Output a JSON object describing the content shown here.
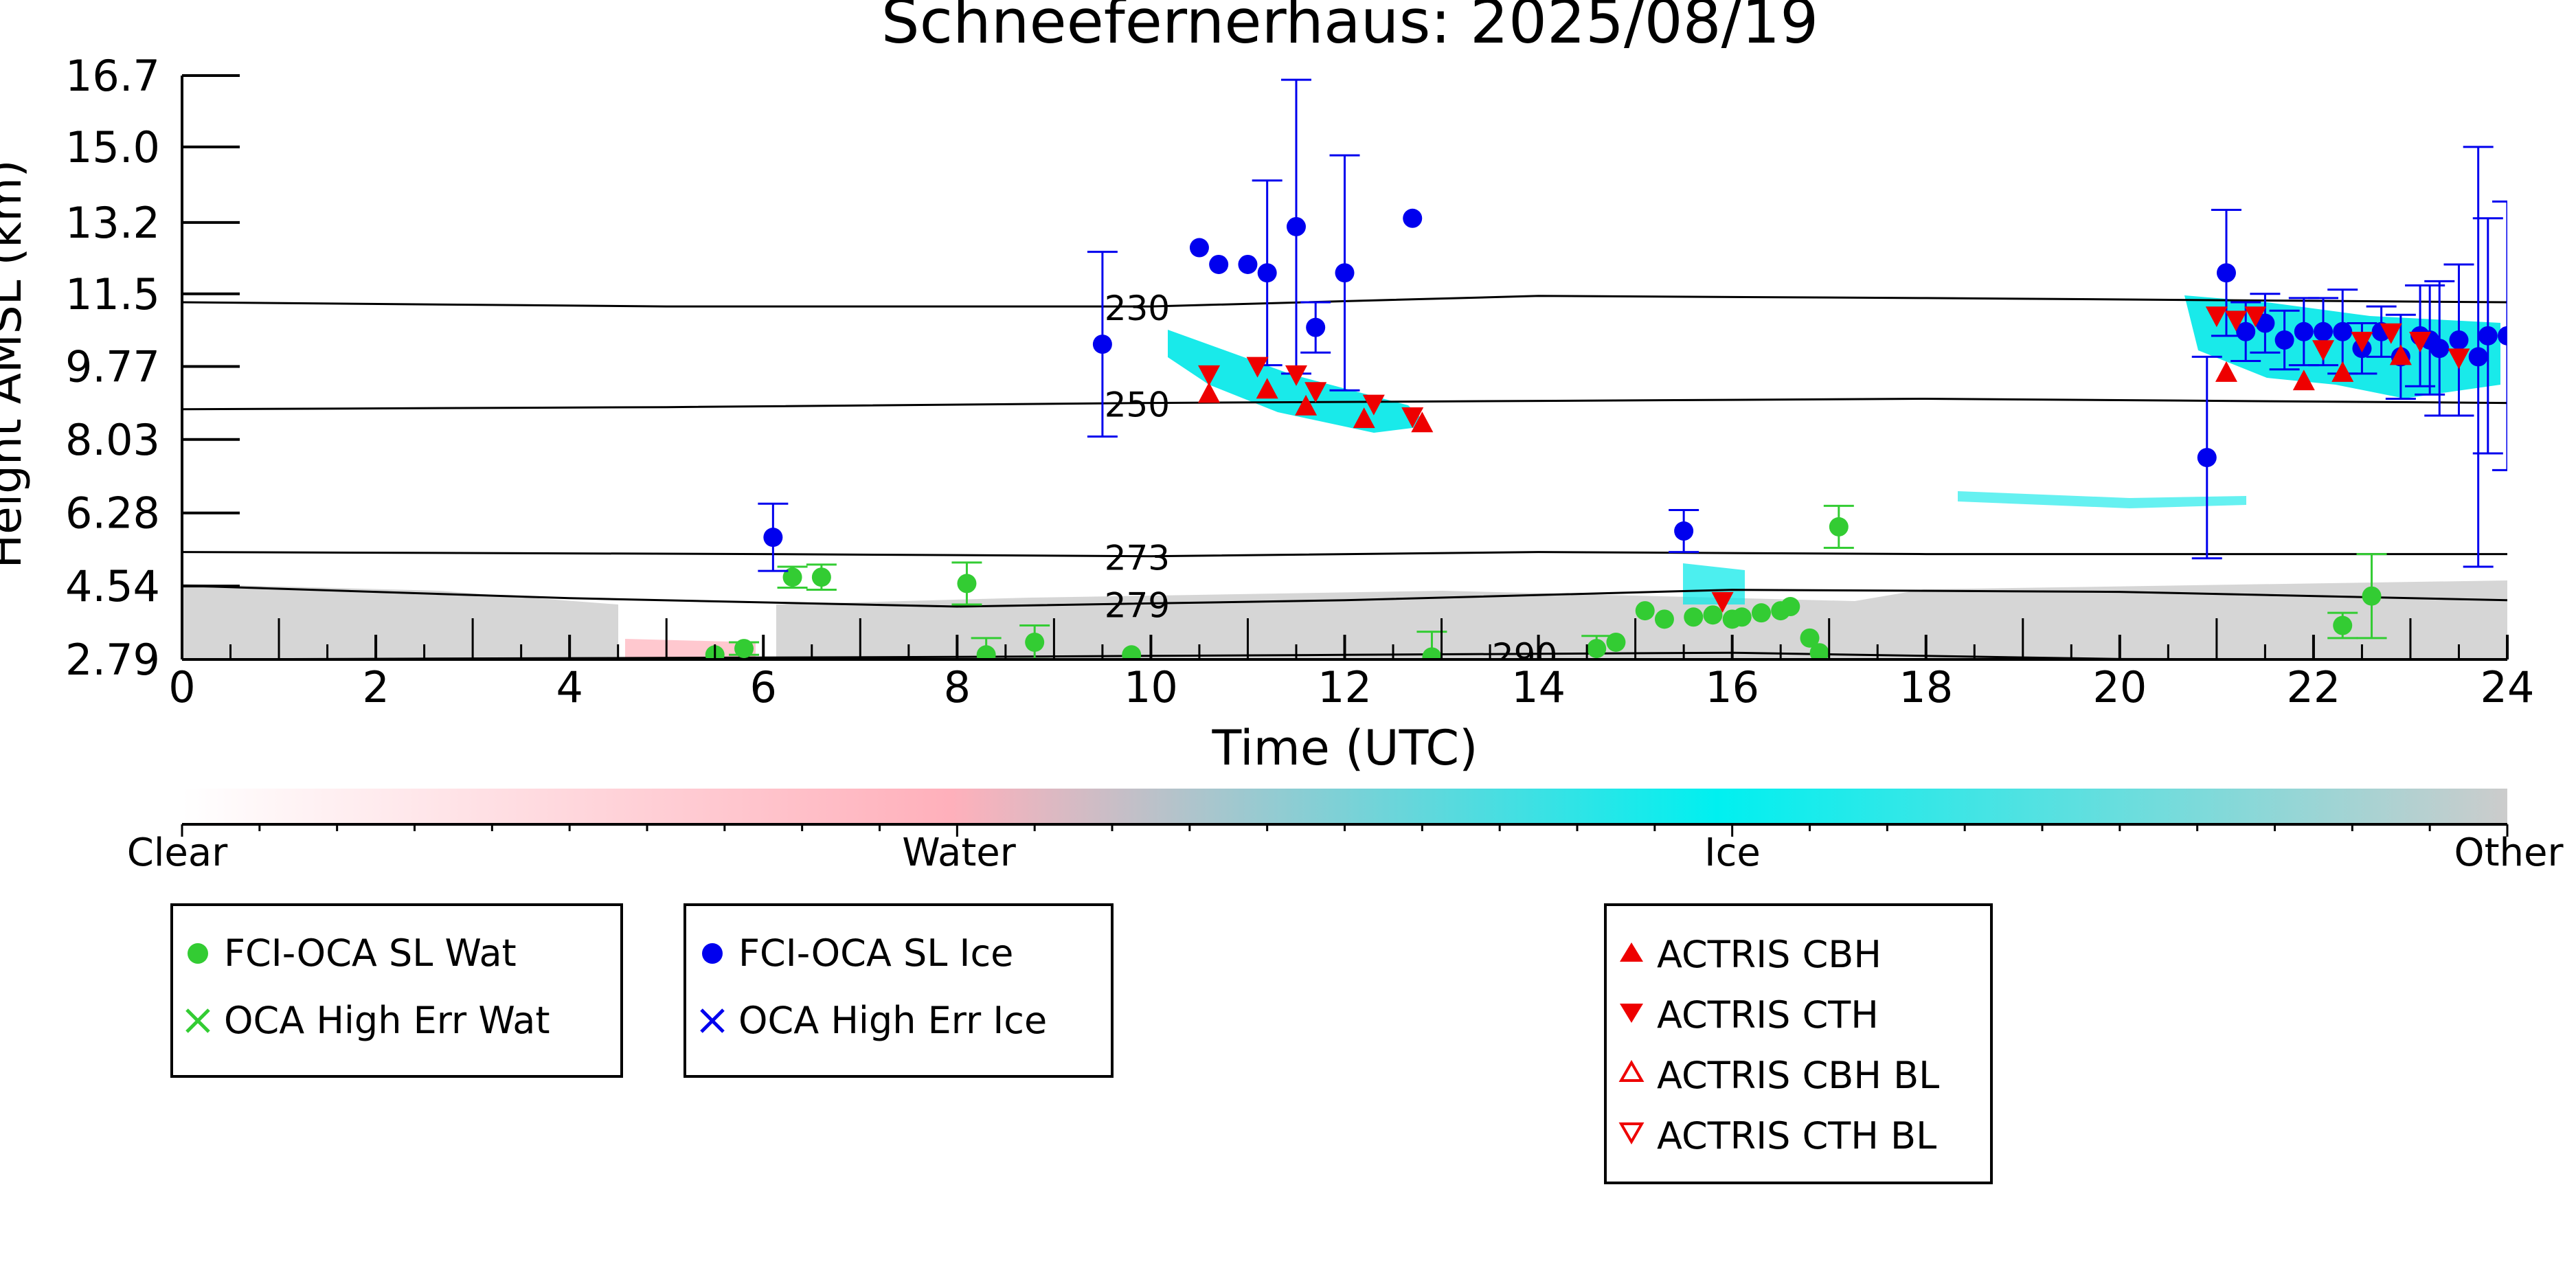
{
  "chart_data": {
    "type": "scatter",
    "title": "Schneefernerhaus: 2025/08/19",
    "xlabel": "Time (UTC)",
    "ylabel": "Height AMSL (km)",
    "xlim": [
      0,
      24
    ],
    "ylim": [
      2.79,
      16.7
    ],
    "xticks": [
      "0",
      "2",
      "4",
      "6",
      "8",
      "10",
      "12",
      "14",
      "16",
      "18",
      "20",
      "22",
      "24"
    ],
    "yticks": [
      "2.79",
      "4.54",
      "6.28",
      "8.03",
      "9.77",
      "11.5",
      "13.2",
      "15.0",
      "16.7"
    ],
    "colors": {
      "water": "#33cc33",
      "ice": "#0000ee",
      "actris": "#ee0000",
      "ice_mask": "#00eeee",
      "other_mask": "#cccccc",
      "clear": "#ffffff",
      "water_mask": "#ffb0bb"
    },
    "isotherms": [
      {
        "label": "230",
        "points": [
          [
            0,
            11.3
          ],
          [
            5,
            11.2
          ],
          [
            10,
            11.2
          ],
          [
            14,
            11.45
          ],
          [
            18,
            11.4
          ],
          [
            24,
            11.3
          ]
        ]
      },
      {
        "label": "250",
        "points": [
          [
            0,
            8.75
          ],
          [
            5,
            8.8
          ],
          [
            10,
            8.9
          ],
          [
            14,
            8.95
          ],
          [
            18,
            9.0
          ],
          [
            24,
            8.9
          ]
        ]
      },
      {
        "label": "273",
        "points": [
          [
            0,
            5.35
          ],
          [
            6,
            5.3
          ],
          [
            10,
            5.25
          ],
          [
            14,
            5.35
          ],
          [
            18,
            5.3
          ],
          [
            24,
            5.3
          ]
        ]
      },
      {
        "label": "279",
        "points": [
          [
            0,
            4.55
          ],
          [
            4,
            4.25
          ],
          [
            8,
            4.05
          ],
          [
            12,
            4.2
          ],
          [
            16,
            4.45
          ],
          [
            20,
            4.4
          ],
          [
            24,
            4.2
          ]
        ]
      },
      {
        "label": "290",
        "points": [
          [
            0,
            2.79
          ],
          [
            8,
            2.85
          ],
          [
            12,
            2.9
          ],
          [
            16,
            2.95
          ],
          [
            20,
            2.8
          ],
          [
            24,
            2.79
          ]
        ]
      }
    ],
    "series": [
      {
        "name": "FCI-OCA SL Wat",
        "marker": "circle",
        "color": "#33cc33",
        "points": [
          [
            5.5,
            2.9,
            0
          ],
          [
            5.8,
            3.05,
            0.15
          ],
          [
            6.3,
            4.75,
            0.25
          ],
          [
            6.6,
            4.75,
            0.3
          ],
          [
            8.1,
            4.6,
            0.5
          ],
          [
            8.3,
            2.9,
            0.4
          ],
          [
            8.8,
            3.2,
            0.4
          ],
          [
            9.8,
            2.9,
            0
          ],
          [
            12.9,
            2.85,
            0.6
          ],
          [
            14.6,
            3.05,
            0.3
          ],
          [
            14.8,
            3.2,
            0
          ],
          [
            15.1,
            3.95,
            0
          ],
          [
            15.3,
            3.75,
            0
          ],
          [
            15.6,
            3.8,
            0
          ],
          [
            15.8,
            3.85,
            0
          ],
          [
            16.0,
            3.75,
            0
          ],
          [
            16.1,
            3.8,
            0
          ],
          [
            16.3,
            3.9,
            0
          ],
          [
            16.5,
            3.95,
            0
          ],
          [
            16.6,
            4.05,
            0
          ],
          [
            16.8,
            3.3,
            0
          ],
          [
            16.9,
            2.95,
            0
          ],
          [
            17.1,
            5.95,
            0.5
          ],
          [
            22.3,
            3.6,
            0.3
          ],
          [
            22.6,
            4.3,
            1.0
          ]
        ]
      },
      {
        "name": "OCA High Err Wat",
        "marker": "x",
        "color": "#33cc33",
        "points": []
      },
      {
        "name": "FCI-OCA SL Ice",
        "marker": "circle",
        "color": "#0000ee",
        "points": [
          [
            6.1,
            5.7,
            0.8
          ],
          [
            9.5,
            10.3,
            2.2
          ],
          [
            10.5,
            12.6,
            0
          ],
          [
            10.7,
            12.2,
            0
          ],
          [
            11.0,
            12.2,
            0
          ],
          [
            11.2,
            12.0,
            2.2
          ],
          [
            11.5,
            13.1,
            3.5
          ],
          [
            11.7,
            10.7,
            0.6
          ],
          [
            12.0,
            12.0,
            2.8
          ],
          [
            12.7,
            13.3,
            0
          ],
          [
            15.5,
            5.85,
            0.5
          ],
          [
            20.9,
            7.6,
            2.4
          ],
          [
            21.1,
            12.0,
            1.5
          ],
          [
            21.3,
            10.6,
            0.7
          ],
          [
            21.5,
            10.8,
            0.7
          ],
          [
            21.7,
            10.4,
            0.7
          ],
          [
            21.9,
            10.6,
            0.8
          ],
          [
            22.1,
            10.6,
            0.8
          ],
          [
            22.3,
            10.6,
            1.0
          ],
          [
            22.5,
            10.2,
            0.6
          ],
          [
            22.7,
            10.6,
            0.6
          ],
          [
            22.9,
            10.0,
            1.0
          ],
          [
            23.1,
            10.5,
            1.2
          ],
          [
            23.2,
            10.4,
            1.3
          ],
          [
            23.3,
            10.2,
            1.6
          ],
          [
            23.5,
            10.4,
            1.8
          ],
          [
            23.7,
            10.0,
            5.0
          ],
          [
            23.8,
            10.5,
            2.8
          ],
          [
            24.0,
            10.5,
            3.2
          ]
        ]
      },
      {
        "name": "OCA High Err Ice",
        "marker": "x",
        "color": "#0000ee",
        "points": []
      },
      {
        "name": "ACTRIS CBH",
        "marker": "triangle-up",
        "color": "#ee0000",
        "points": [
          [
            10.6,
            9.1
          ],
          [
            11.2,
            9.2
          ],
          [
            11.6,
            8.8
          ],
          [
            12.2,
            8.5
          ],
          [
            12.8,
            8.4
          ],
          [
            21.1,
            9.6
          ],
          [
            21.9,
            9.4
          ],
          [
            22.3,
            9.6
          ],
          [
            22.9,
            10.0
          ]
        ]
      },
      {
        "name": "ACTRIS CTH",
        "marker": "triangle-down",
        "color": "#ee0000",
        "points": [
          [
            10.6,
            9.6
          ],
          [
            11.1,
            9.8
          ],
          [
            11.5,
            9.6
          ],
          [
            11.7,
            9.2
          ],
          [
            12.3,
            8.9
          ],
          [
            12.7,
            8.6
          ],
          [
            21.0,
            11.0
          ],
          [
            21.2,
            10.9
          ],
          [
            21.4,
            11.0
          ],
          [
            22.1,
            10.2
          ],
          [
            22.5,
            10.4
          ],
          [
            22.8,
            10.6
          ],
          [
            23.1,
            10.4
          ],
          [
            23.5,
            10.0
          ],
          [
            15.9,
            4.2
          ]
        ]
      },
      {
        "name": "ACTRIS CBH BL",
        "marker": "triangle-up-open",
        "color": "#ee0000",
        "points": []
      },
      {
        "name": "ACTRIS CTH BL",
        "marker": "triangle-down-open",
        "color": "#ee0000",
        "points": []
      }
    ],
    "colorbar": {
      "labels": [
        "Clear",
        "Water",
        "Ice",
        "Other"
      ],
      "stops": [
        {
          "pos": 0.0,
          "color": "#ffffff"
        },
        {
          "pos": 0.33,
          "color": "#ffb0bb"
        },
        {
          "pos": 0.66,
          "color": "#00f0f0"
        },
        {
          "pos": 1.0,
          "color": "#cccccc"
        }
      ]
    },
    "legends": [
      {
        "entries": [
          "FCI-OCA SL Wat",
          "OCA High Err Wat"
        ]
      },
      {
        "entries": [
          "FCI-OCA SL Ice",
          "OCA High Err Ice"
        ]
      },
      {
        "entries": [
          "ACTRIS CBH",
          "ACTRIS CTH",
          "ACTRIS CBH BL",
          "ACTRIS CTH BL"
        ]
      }
    ]
  }
}
